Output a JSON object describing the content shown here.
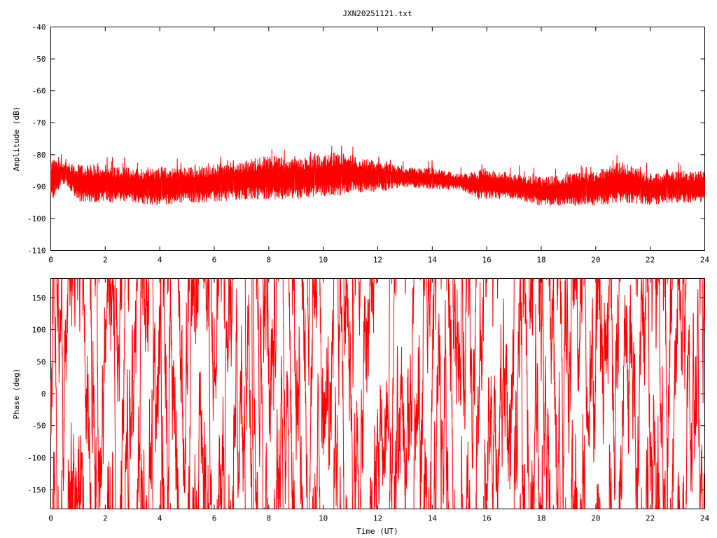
{
  "chart_data": [
    {
      "type": "line",
      "title": "JXN20251121.txt",
      "xlabel": "",
      "ylabel": "Amplitude (dB)",
      "xlim": [
        0,
        24
      ],
      "ylim": [
        -110,
        -40
      ],
      "x_ticks": [
        "0",
        "2",
        "4",
        "6",
        "8",
        "10",
        "12",
        "14",
        "16",
        "18",
        "20",
        "22",
        "24"
      ],
      "y_ticks": [
        "-110",
        "-100",
        "-90",
        "-80",
        "-70",
        "-60",
        "-50",
        "-40"
      ],
      "series_color": "#ff0000",
      "series": [
        {
          "x": [
            0,
            0.5,
            1,
            2,
            3,
            4,
            5,
            6,
            7,
            8,
            9,
            10,
            10.5,
            11,
            12,
            13,
            14,
            15,
            15.7,
            16,
            17,
            18,
            19,
            20,
            21,
            22,
            23,
            24
          ],
          "min": [
            -95,
            -89,
            -95,
            -95,
            -95,
            -96,
            -95,
            -95,
            -94,
            -94,
            -94,
            -93,
            -93,
            -92,
            -92,
            -90,
            -91,
            -91,
            -94,
            -94,
            -94,
            -96,
            -96,
            -96,
            -95,
            -96,
            -95,
            -95
          ],
          "max": [
            -81,
            -82,
            -83,
            -83,
            -84,
            -84,
            -84,
            -83,
            -82,
            -80,
            -81,
            -80,
            -79,
            -80,
            -82,
            -84,
            -84,
            -86,
            -85,
            -84,
            -86,
            -87,
            -86,
            -85,
            -82,
            -86,
            -85,
            -85
          ]
        }
      ]
    },
    {
      "type": "line",
      "title": "",
      "xlabel": "Time (UT)",
      "ylabel": "Phase (deg)",
      "xlim": [
        0,
        24
      ],
      "ylim": [
        -180,
        180
      ],
      "x_ticks": [
        "0",
        "2",
        "4",
        "6",
        "8",
        "10",
        "12",
        "14",
        "16",
        "18",
        "20",
        "22",
        "24"
      ],
      "y_ticks": [
        "-150",
        "-100",
        "-50",
        "0",
        "50",
        "100",
        "150"
      ],
      "series_color": "#ff0000",
      "series": [
        {
          "note_range": [
            -180,
            180
          ],
          "min": [
            -180
          ],
          "max": [
            180
          ]
        }
      ]
    }
  ]
}
